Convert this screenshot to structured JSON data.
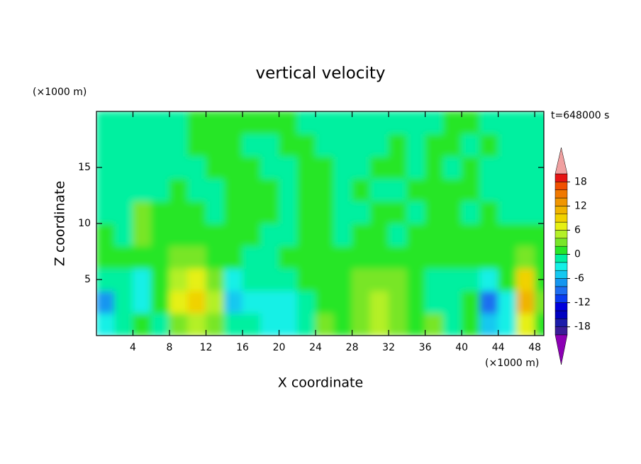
{
  "chart_data": {
    "type": "contour",
    "title": "vertical velocity",
    "x_label": "X coordinate",
    "y_label": "Z coordinate",
    "x_unit": "(×1000 m)",
    "y_unit": "(×1000 m)",
    "annotation": "t=648000 s",
    "xlim": [
      0,
      49
    ],
    "ylim": [
      0,
      20
    ],
    "xticks": [
      4,
      8,
      12,
      16,
      20,
      24,
      28,
      32,
      36,
      40,
      44,
      48
    ],
    "yticks": [
      5,
      10,
      15
    ],
    "x": [
      1,
      3,
      5,
      7,
      9,
      11,
      13,
      15,
      17,
      19,
      21,
      23,
      25,
      27,
      29,
      31,
      33,
      35,
      37,
      39,
      41,
      43,
      45,
      47,
      49
    ],
    "y": [
      1,
      3,
      5,
      7,
      9,
      11,
      13,
      15,
      17,
      19
    ],
    "values": [
      [
        -3,
        -1,
        1,
        -1,
        3,
        5,
        3,
        -2,
        -1,
        -3,
        -3,
        -1,
        2,
        1,
        3,
        4,
        2,
        1,
        2,
        -1,
        1,
        -5,
        -3,
        7,
        1
      ],
      [
        -8,
        -2,
        -3,
        1,
        6,
        8,
        4,
        -5,
        -3,
        -3,
        -3,
        -1,
        1,
        1,
        3,
        5,
        3,
        1,
        -1,
        -1,
        1,
        -9,
        -3,
        11,
        2
      ],
      [
        -1,
        -1,
        -4,
        1,
        5,
        7,
        3,
        -4,
        -2,
        -2,
        -1,
        1,
        1,
        1,
        2,
        3,
        2,
        1,
        -2,
        -1,
        -2,
        -3,
        1,
        8,
        1
      ],
      [
        1,
        1,
        1,
        1,
        2,
        3,
        1,
        1,
        -1,
        -1,
        1,
        1,
        1,
        1,
        1,
        1,
        1,
        1,
        1,
        1,
        1,
        1,
        1,
        2,
        1
      ],
      [
        1,
        -1,
        3,
        1,
        1,
        1,
        1,
        1,
        1,
        -1,
        -1,
        1,
        1,
        -1,
        1,
        1,
        -1,
        1,
        1,
        1,
        1,
        1,
        1,
        1,
        1
      ],
      [
        -1,
        -1,
        3,
        1,
        1,
        1,
        -1,
        1,
        1,
        1,
        -1,
        1,
        1,
        -1,
        -1,
        1,
        1,
        -1,
        1,
        1,
        -1,
        1,
        -1,
        -1,
        -1
      ],
      [
        -1,
        -1,
        -1,
        -1,
        1,
        -1,
        -1,
        1,
        1,
        1,
        -1,
        1,
        1,
        -1,
        1,
        -1,
        -1,
        1,
        1,
        1,
        1,
        -1,
        -1,
        -1,
        -1
      ],
      [
        -1,
        -1,
        -1,
        -1,
        -1,
        -1,
        1,
        1,
        1,
        -1,
        -1,
        1,
        1,
        -1,
        -1,
        1,
        1,
        -1,
        1,
        -1,
        1,
        -1,
        -1,
        -1,
        -1
      ],
      [
        -1,
        -1,
        -1,
        -1,
        -1,
        1,
        1,
        1,
        -1,
        -1,
        1,
        1,
        -1,
        -1,
        -1,
        -1,
        1,
        -1,
        1,
        1,
        -1,
        1,
        -1,
        -1,
        -1
      ],
      [
        -1,
        -1,
        -1,
        -1,
        -1,
        1,
        1,
        1,
        1,
        1,
        1,
        -1,
        -1,
        -1,
        -1,
        -1,
        -1,
        -1,
        -1,
        1,
        1,
        -1,
        -1,
        -1,
        -1
      ]
    ],
    "colorbar": {
      "levels": [
        -20,
        -18,
        -16,
        -14,
        -12,
        -10,
        -8,
        -6,
        -4,
        -2,
        0,
        2,
        4,
        6,
        8,
        10,
        12,
        14,
        16,
        18,
        20
      ],
      "colors": [
        "#8c00b4",
        "#3a1c98",
        "#1c1caa",
        "#0000c0",
        "#0000dc",
        "#0a3cf0",
        "#1e6ef0",
        "#1496f0",
        "#14c8f0",
        "#14f0e6",
        "#00f0a0",
        "#28e628",
        "#78e628",
        "#b4f028",
        "#e6f014",
        "#f0d200",
        "#f0b400",
        "#f09600",
        "#f07800",
        "#f05000",
        "#e61414",
        "#f0a0a0"
      ],
      "ticks": [
        -18,
        -12,
        -6,
        0,
        6,
        12,
        18
      ]
    }
  }
}
